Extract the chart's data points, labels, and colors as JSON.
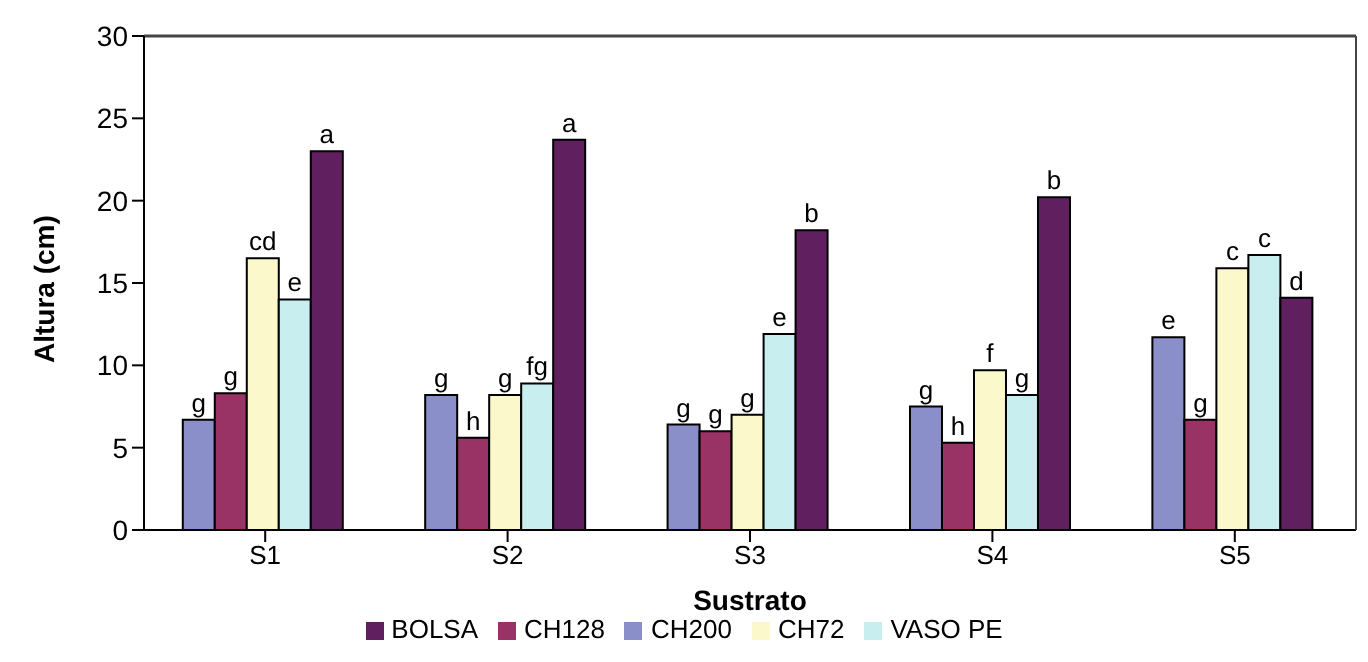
{
  "chart_data": {
    "type": "bar",
    "xlabel": "Sustrato",
    "ylabel": "Altura (cm)",
    "categories": [
      "S1",
      "S2",
      "S3",
      "S4",
      "S5"
    ],
    "series": [
      {
        "name": "CH200",
        "color": "#8a8fc9",
        "values": [
          6.7,
          8.2,
          6.4,
          7.5,
          11.7
        ],
        "value_labels": [
          "g",
          "g",
          "g",
          "g",
          "e"
        ]
      },
      {
        "name": "CH128",
        "color": "#993366",
        "values": [
          8.3,
          5.6,
          6.0,
          5.3,
          6.7
        ],
        "value_labels": [
          "g",
          "h",
          "g",
          "h",
          "g"
        ]
      },
      {
        "name": "CH72",
        "color": "#fbf9cb",
        "values": [
          16.5,
          8.2,
          7.0,
          9.7,
          15.9
        ],
        "value_labels": [
          "cd",
          "g",
          "g",
          "f",
          "c"
        ]
      },
      {
        "name": "VASO PE",
        "color": "#c8eef0",
        "values": [
          14.0,
          8.9,
          11.9,
          8.2,
          16.7
        ],
        "value_labels": [
          "e",
          "fg",
          "e",
          "g",
          "c"
        ]
      },
      {
        "name": "BOLSA",
        "color": "#602060",
        "values": [
          23.0,
          23.7,
          18.2,
          20.2,
          14.1
        ],
        "value_labels": [
          "a",
          "a",
          "b",
          "b",
          "d"
        ]
      }
    ],
    "ylim": [
      0,
      30
    ],
    "yticks": [
      0,
      5,
      10,
      15,
      20,
      25,
      30
    ],
    "grid": false,
    "legend": "bottom"
  }
}
